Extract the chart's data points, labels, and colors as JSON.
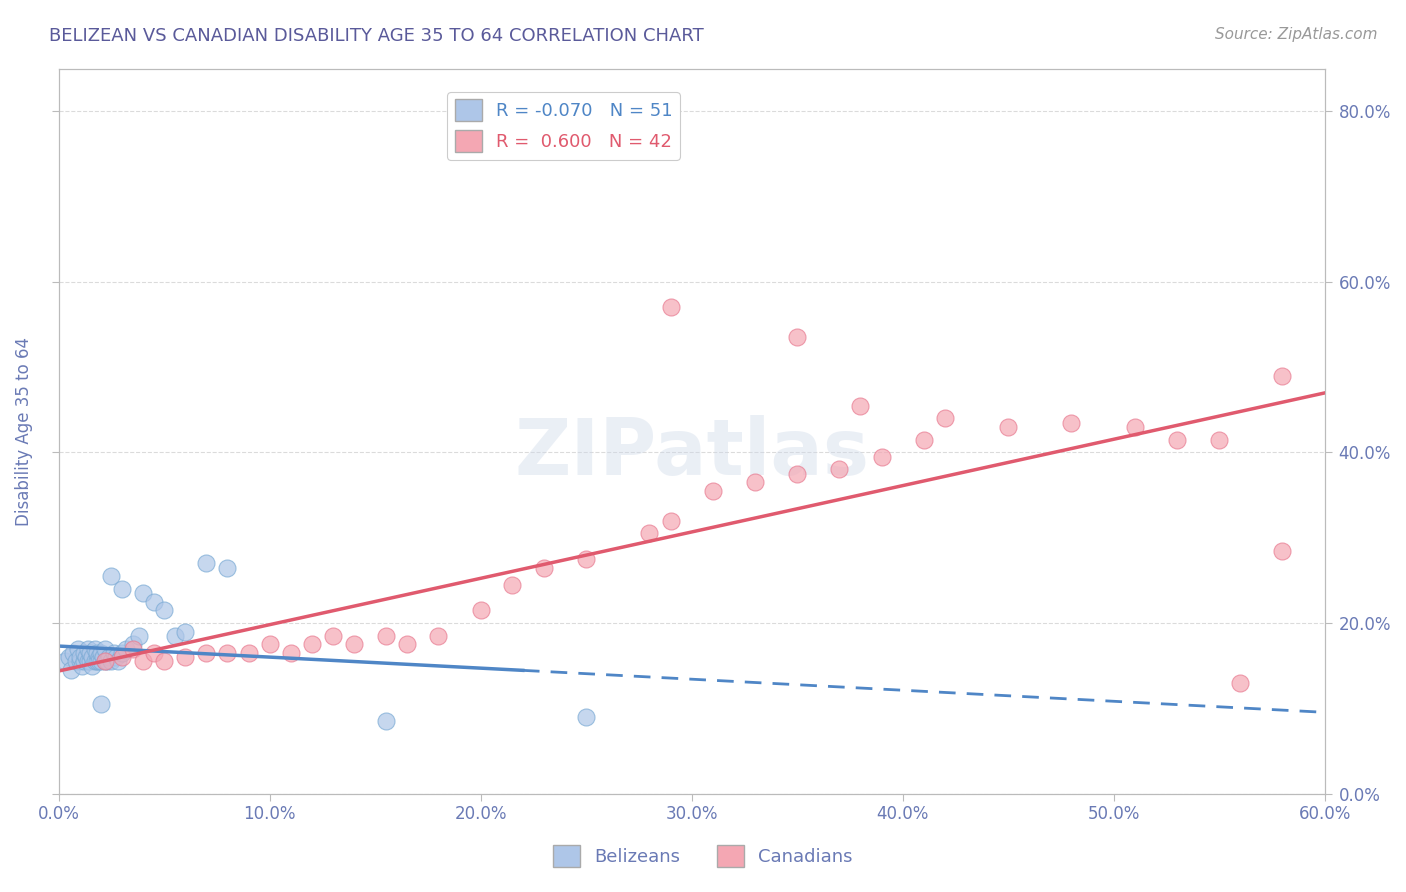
{
  "title": "BELIZEAN VS CANADIAN DISABILITY AGE 35 TO 64 CORRELATION CHART",
  "source": "Source: ZipAtlas.com",
  "ylabel": "Disability Age 35 to 64",
  "xlim": [
    0.0,
    0.6
  ],
  "ylim": [
    0.0,
    0.85
  ],
  "watermark": "ZIPatlas",
  "title_color": "#5a5a9a",
  "axis_color": "#6a7ab5",
  "background_color": "#ffffff",
  "grid_color": "#cccccc",
  "belizean_color": "#aec6e8",
  "canadian_color": "#f4a7b3",
  "belizean_edge_color": "#7aaad4",
  "canadian_edge_color": "#e87a90",
  "belizean_line_color": "#4f86c6",
  "canadian_line_color": "#e05a6e",
  "belizean_R": -0.07,
  "belizean_N": 51,
  "canadian_R": 0.6,
  "canadian_N": 42,
  "belizean_points": [
    [
      0.003,
      0.155
    ],
    [
      0.005,
      0.16
    ],
    [
      0.006,
      0.145
    ],
    [
      0.007,
      0.165
    ],
    [
      0.008,
      0.155
    ],
    [
      0.009,
      0.17
    ],
    [
      0.01,
      0.155
    ],
    [
      0.01,
      0.16
    ],
    [
      0.011,
      0.15
    ],
    [
      0.012,
      0.155
    ],
    [
      0.012,
      0.165
    ],
    [
      0.013,
      0.16
    ],
    [
      0.014,
      0.155
    ],
    [
      0.014,
      0.17
    ],
    [
      0.015,
      0.155
    ],
    [
      0.015,
      0.165
    ],
    [
      0.016,
      0.15
    ],
    [
      0.016,
      0.16
    ],
    [
      0.017,
      0.155
    ],
    [
      0.017,
      0.17
    ],
    [
      0.018,
      0.155
    ],
    [
      0.018,
      0.165
    ],
    [
      0.019,
      0.16
    ],
    [
      0.019,
      0.155
    ],
    [
      0.02,
      0.155
    ],
    [
      0.02,
      0.165
    ],
    [
      0.021,
      0.16
    ],
    [
      0.022,
      0.155
    ],
    [
      0.022,
      0.17
    ],
    [
      0.023,
      0.155
    ],
    [
      0.024,
      0.16
    ],
    [
      0.025,
      0.155
    ],
    [
      0.026,
      0.165
    ],
    [
      0.027,
      0.16
    ],
    [
      0.028,
      0.155
    ],
    [
      0.03,
      0.165
    ],
    [
      0.032,
      0.17
    ],
    [
      0.035,
      0.175
    ],
    [
      0.038,
      0.185
    ],
    [
      0.04,
      0.235
    ],
    [
      0.045,
      0.225
    ],
    [
      0.05,
      0.215
    ],
    [
      0.055,
      0.185
    ],
    [
      0.06,
      0.19
    ],
    [
      0.025,
      0.255
    ],
    [
      0.03,
      0.24
    ],
    [
      0.07,
      0.27
    ],
    [
      0.08,
      0.265
    ],
    [
      0.155,
      0.085
    ],
    [
      0.25,
      0.09
    ],
    [
      0.02,
      0.105
    ]
  ],
  "canadian_points": [
    [
      0.022,
      0.155
    ],
    [
      0.03,
      0.16
    ],
    [
      0.035,
      0.17
    ],
    [
      0.04,
      0.155
    ],
    [
      0.045,
      0.165
    ],
    [
      0.05,
      0.155
    ],
    [
      0.06,
      0.16
    ],
    [
      0.07,
      0.165
    ],
    [
      0.08,
      0.165
    ],
    [
      0.09,
      0.165
    ],
    [
      0.1,
      0.175
    ],
    [
      0.11,
      0.165
    ],
    [
      0.12,
      0.175
    ],
    [
      0.13,
      0.185
    ],
    [
      0.14,
      0.175
    ],
    [
      0.155,
      0.185
    ],
    [
      0.165,
      0.175
    ],
    [
      0.18,
      0.185
    ],
    [
      0.2,
      0.215
    ],
    [
      0.215,
      0.245
    ],
    [
      0.23,
      0.265
    ],
    [
      0.25,
      0.275
    ],
    [
      0.28,
      0.305
    ],
    [
      0.29,
      0.32
    ],
    [
      0.31,
      0.355
    ],
    [
      0.33,
      0.365
    ],
    [
      0.35,
      0.375
    ],
    [
      0.37,
      0.38
    ],
    [
      0.39,
      0.395
    ],
    [
      0.41,
      0.415
    ],
    [
      0.29,
      0.57
    ],
    [
      0.35,
      0.535
    ],
    [
      0.42,
      0.44
    ],
    [
      0.45,
      0.43
    ],
    [
      0.48,
      0.435
    ],
    [
      0.51,
      0.43
    ],
    [
      0.53,
      0.415
    ],
    [
      0.55,
      0.415
    ],
    [
      0.38,
      0.455
    ],
    [
      0.56,
      0.13
    ],
    [
      0.58,
      0.285
    ],
    [
      0.58,
      0.49
    ]
  ]
}
